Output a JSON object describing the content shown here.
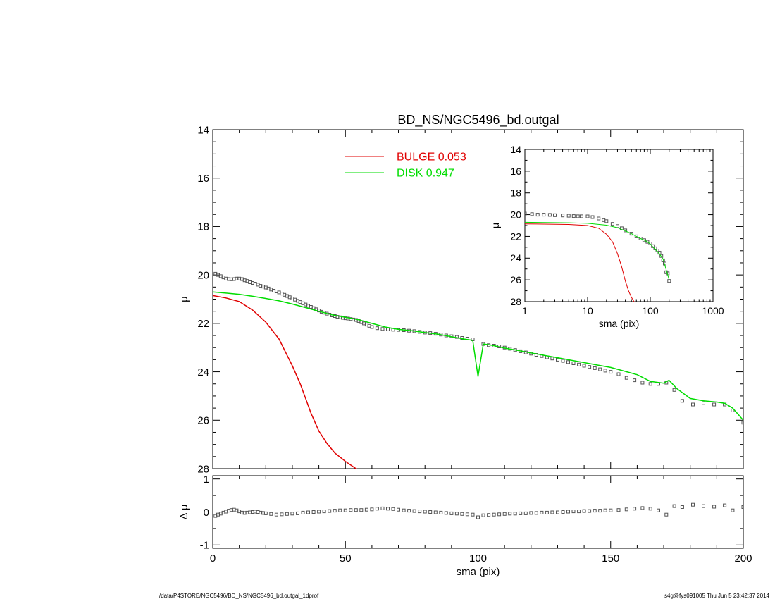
{
  "title": "BD_NS/NGC5496_bd.outgal",
  "footer": {
    "path": "/data/P4STORE/NGC5496/BD_NS/NGC5496_bd.outgal_1dprof",
    "stamp": "s4g@fys091005  Thu Jun  5 23:42:37 2014"
  },
  "colors": {
    "bulge": "#e00000",
    "disk": "#00dd00",
    "data": "#555555",
    "axis": "#000000"
  },
  "chart_data": [
    {
      "id": "main",
      "type": "line",
      "xlabel": "sma (pix)",
      "ylabel": "μ",
      "xlim": [
        0,
        200
      ],
      "ylim": [
        28,
        14
      ],
      "y_inverted": true,
      "xticks": [
        0,
        50,
        100,
        150,
        200
      ],
      "yticks": [
        14,
        16,
        18,
        20,
        22,
        24,
        26,
        28
      ],
      "xlabels_shown": false,
      "legend": {
        "placement": "top-center",
        "entries": [
          {
            "label": "BULGE  0.053",
            "series": "bulge"
          },
          {
            "label": "DISK  0.947",
            "series": "disk"
          }
        ]
      },
      "series": [
        {
          "id": "data",
          "style": "squares",
          "x": [
            1,
            2,
            3,
            4,
            5,
            6,
            7,
            8,
            9,
            10,
            11,
            12,
            13,
            14,
            15,
            16,
            17,
            18,
            19,
            20,
            21,
            22,
            23,
            24,
            25,
            26,
            27,
            28,
            29,
            30,
            31,
            32,
            33,
            34,
            35,
            36,
            37,
            38,
            39,
            40,
            41,
            42,
            43,
            44,
            45,
            46,
            47,
            48,
            49,
            50,
            51,
            52,
            53,
            54,
            55,
            56,
            57,
            58,
            59,
            60,
            62,
            64,
            66,
            68,
            70,
            72,
            74,
            76,
            78,
            80,
            82,
            84,
            86,
            88,
            90,
            92,
            94,
            96,
            98,
            102,
            104,
            106,
            108,
            110,
            112,
            114,
            116,
            118,
            120,
            122,
            124,
            126,
            128,
            130,
            132,
            134,
            136,
            138,
            140,
            142,
            144,
            146,
            148,
            150,
            153,
            156,
            159,
            162,
            165,
            168,
            171,
            174,
            177,
            181,
            185,
            189,
            193,
            196,
            200
          ],
          "y": [
            19.95,
            20.0,
            20.05,
            20.1,
            20.15,
            20.17,
            20.18,
            20.17,
            20.15,
            20.15,
            20.17,
            20.22,
            20.25,
            20.3,
            20.33,
            20.36,
            20.4,
            20.45,
            20.48,
            20.52,
            20.56,
            20.6,
            20.65,
            20.68,
            20.72,
            20.77,
            20.82,
            20.87,
            20.92,
            20.97,
            21.02,
            21.07,
            21.12,
            21.17,
            21.22,
            21.27,
            21.32,
            21.37,
            21.42,
            21.47,
            21.52,
            21.56,
            21.6,
            21.64,
            21.67,
            21.7,
            21.73,
            21.75,
            21.77,
            21.79,
            21.8,
            21.82,
            21.84,
            21.86,
            21.9,
            21.95,
            22.0,
            22.05,
            22.1,
            22.15,
            22.2,
            22.23,
            22.25,
            22.26,
            22.27,
            22.28,
            22.3,
            22.32,
            22.35,
            22.38,
            22.4,
            22.43,
            22.46,
            22.5,
            22.53,
            22.56,
            22.6,
            22.63,
            22.66,
            22.85,
            22.9,
            22.92,
            22.95,
            23.0,
            23.05,
            23.1,
            23.15,
            23.2,
            23.25,
            23.3,
            23.35,
            23.4,
            23.45,
            23.5,
            23.55,
            23.6,
            23.65,
            23.7,
            23.75,
            23.8,
            23.85,
            23.9,
            23.95,
            24.0,
            24.1,
            24.25,
            24.35,
            24.45,
            24.5,
            24.5,
            24.45,
            24.75,
            25.2,
            25.35,
            25.3,
            25.35,
            25.35,
            25.6,
            26.1
          ]
        },
        {
          "id": "disk",
          "style": "line",
          "x": [
            0,
            5,
            10,
            15,
            20,
            25,
            30,
            35,
            40,
            45,
            50,
            55,
            60,
            65,
            70,
            75,
            80,
            85,
            90,
            95,
            98,
            100,
            102,
            105,
            110,
            115,
            120,
            125,
            130,
            135,
            140,
            145,
            150,
            155,
            160,
            165,
            170,
            172,
            175,
            180,
            185,
            190,
            193,
            196,
            200
          ],
          "y": [
            20.7,
            20.75,
            20.8,
            20.88,
            20.97,
            21.07,
            21.2,
            21.35,
            21.5,
            21.65,
            21.75,
            21.85,
            22.0,
            22.15,
            22.25,
            22.3,
            22.38,
            22.45,
            22.55,
            22.65,
            22.7,
            24.2,
            22.85,
            22.9,
            23.02,
            23.12,
            23.22,
            23.32,
            23.42,
            23.52,
            23.62,
            23.72,
            23.82,
            23.97,
            24.12,
            24.4,
            24.47,
            24.35,
            24.7,
            25.1,
            25.2,
            25.25,
            25.3,
            25.5,
            26.0
          ]
        },
        {
          "id": "bulge",
          "style": "line",
          "x": [
            0,
            5,
            10,
            15,
            20,
            25,
            30,
            33,
            35,
            37,
            40,
            43,
            46,
            50,
            54,
            58
          ],
          "y": [
            20.85,
            20.95,
            21.1,
            21.45,
            21.95,
            22.65,
            23.75,
            24.5,
            25.1,
            25.7,
            26.45,
            26.95,
            27.35,
            27.7,
            28.0,
            28.2
          ]
        }
      ]
    },
    {
      "id": "residual",
      "type": "scatter",
      "xlabel": "sma (pix)",
      "ylabel": "Δ μ",
      "xlim": [
        0,
        200
      ],
      "ylim": [
        -1.1,
        1.1
      ],
      "xticks": [
        0,
        50,
        100,
        150,
        200
      ],
      "yticks": [
        -1,
        0,
        1
      ],
      "series": [
        {
          "id": "residual",
          "style": "squares",
          "x": [
            1,
            2,
            3,
            4,
            5,
            6,
            7,
            8,
            9,
            10,
            11,
            12,
            13,
            14,
            15,
            16,
            17,
            18,
            19,
            20,
            22,
            24,
            26,
            28,
            30,
            32,
            34,
            36,
            38,
            40,
            42,
            44,
            46,
            48,
            50,
            52,
            54,
            56,
            58,
            60,
            62,
            64,
            66,
            68,
            70,
            72,
            74,
            76,
            78,
            80,
            82,
            84,
            86,
            88,
            90,
            92,
            94,
            96,
            98,
            100,
            102,
            104,
            106,
            108,
            110,
            112,
            114,
            116,
            118,
            120,
            122,
            124,
            126,
            128,
            130,
            132,
            134,
            136,
            138,
            140,
            142,
            144,
            146,
            148,
            150,
            153,
            156,
            159,
            162,
            165,
            168,
            171,
            174,
            177,
            181,
            185,
            189,
            193,
            196,
            200
          ],
          "y": [
            -0.12,
            -0.08,
            -0.05,
            -0.02,
            0.01,
            0.04,
            0.06,
            0.07,
            0.05,
            0.02,
            -0.02,
            -0.03,
            -0.02,
            -0.01,
            0.0,
            0.01,
            0.0,
            -0.02,
            -0.03,
            -0.04,
            -0.06,
            -0.08,
            -0.07,
            -0.06,
            -0.05,
            -0.04,
            -0.02,
            -0.01,
            0.0,
            0.01,
            0.02,
            0.03,
            0.04,
            0.05,
            0.05,
            0.06,
            0.06,
            0.06,
            0.07,
            0.08,
            0.1,
            0.11,
            0.1,
            0.09,
            0.07,
            0.05,
            0.04,
            0.03,
            0.02,
            0.01,
            0.0,
            -0.01,
            -0.02,
            -0.03,
            -0.04,
            -0.05,
            -0.06,
            -0.07,
            -0.08,
            -0.16,
            -0.1,
            -0.09,
            -0.08,
            -0.07,
            -0.06,
            -0.05,
            -0.05,
            -0.04,
            -0.04,
            -0.03,
            -0.03,
            -0.02,
            -0.02,
            -0.01,
            -0.01,
            0.0,
            0.01,
            0.02,
            0.02,
            0.03,
            0.03,
            0.04,
            0.04,
            0.05,
            0.05,
            0.06,
            0.08,
            0.1,
            0.12,
            0.1,
            0.05,
            -0.08,
            0.18,
            0.15,
            0.22,
            0.18,
            0.16,
            0.2,
            0.05,
            0.15
          ]
        }
      ]
    },
    {
      "id": "inset",
      "type": "line",
      "xlabel": "sma (pix)",
      "ylabel": "μ",
      "xscale": "log",
      "xlim": [
        1,
        1000
      ],
      "ylim": [
        28,
        14
      ],
      "y_inverted": true,
      "xticks": [
        1,
        10,
        100,
        1000
      ],
      "yticks": [
        14,
        16,
        18,
        20,
        22,
        24,
        26,
        28
      ],
      "series": [
        {
          "id": "data",
          "style": "squares",
          "x": [
            1,
            1.3,
            1.6,
            2,
            2.5,
            3,
            4,
            5,
            6,
            7,
            8,
            10,
            12,
            15,
            18,
            20,
            25,
            30,
            35,
            40,
            50,
            60,
            70,
            80,
            90,
            100,
            110,
            120,
            130,
            140,
            150,
            160,
            170,
            180,
            190,
            200
          ],
          "y": [
            19.9,
            19.95,
            20.0,
            20.0,
            20.02,
            20.05,
            20.07,
            20.1,
            20.13,
            20.15,
            20.15,
            20.16,
            20.22,
            20.35,
            20.5,
            20.6,
            20.85,
            21.05,
            21.25,
            21.45,
            21.75,
            22.0,
            22.2,
            22.35,
            22.5,
            22.65,
            22.9,
            23.1,
            23.3,
            23.5,
            23.8,
            24.2,
            24.5,
            25.3,
            25.4,
            26.1
          ]
        },
        {
          "id": "disk",
          "style": "line",
          "x": [
            1,
            2,
            5,
            10,
            20,
            30,
            40,
            50,
            60,
            70,
            80,
            90,
            100,
            120,
            140,
            160,
            180,
            200
          ],
          "y": [
            20.7,
            20.72,
            20.75,
            20.8,
            20.97,
            21.2,
            21.5,
            21.75,
            22.0,
            22.2,
            22.35,
            22.5,
            22.7,
            23.2,
            23.6,
            24.1,
            25.1,
            26.0
          ]
        },
        {
          "id": "bulge",
          "style": "line",
          "x": [
            1,
            2,
            5,
            10,
            15,
            20,
            25,
            30,
            35,
            40,
            45,
            50,
            55,
            58
          ],
          "y": [
            20.85,
            20.87,
            20.9,
            21.0,
            21.25,
            21.8,
            22.5,
            23.6,
            24.8,
            26.1,
            27.0,
            27.6,
            28.0,
            28.2
          ]
        }
      ]
    }
  ]
}
